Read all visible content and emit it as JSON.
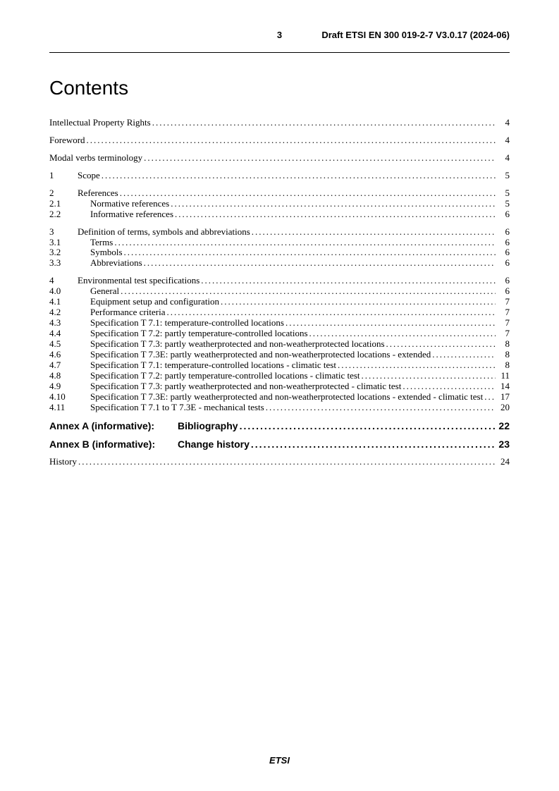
{
  "header": {
    "page_number": "3",
    "doc_id": "Draft ETSI EN 300 019-2-7 V3.0.17 (2024-06)"
  },
  "title": "Contents",
  "front_matter": [
    {
      "text": "Intellectual Property Rights",
      "page": "4"
    },
    {
      "text": "Foreword",
      "page": "4"
    },
    {
      "text": "Modal verbs terminology",
      "page": "4"
    }
  ],
  "sections": [
    {
      "num": "1",
      "text": "Scope",
      "page": "5",
      "subs": []
    },
    {
      "num": "2",
      "text": "References",
      "page": "5",
      "subs": [
        {
          "num": "2.1",
          "text": "Normative references",
          "page": "5"
        },
        {
          "num": "2.2",
          "text": "Informative references",
          "page": "6"
        }
      ]
    },
    {
      "num": "3",
      "text": "Definition of terms, symbols and abbreviations",
      "page": "6",
      "subs": [
        {
          "num": "3.1",
          "text": "Terms",
          "page": "6"
        },
        {
          "num": "3.2",
          "text": "Symbols",
          "page": "6"
        },
        {
          "num": "3.3",
          "text": "Abbreviations",
          "page": "6"
        }
      ]
    },
    {
      "num": "4",
      "text": "Environmental test specifications",
      "page": "6",
      "subs": [
        {
          "num": "4.0",
          "text": "General",
          "page": "6"
        },
        {
          "num": "4.1",
          "text": "Equipment setup and configuration",
          "page": "7"
        },
        {
          "num": "4.2",
          "text": "Performance criteria",
          "page": "7"
        },
        {
          "num": "4.3",
          "text": "Specification T 7.1: temperature-controlled locations",
          "page": "7"
        },
        {
          "num": "4.4",
          "text": "Specification T 7.2: partly temperature-controlled locations",
          "page": "7"
        },
        {
          "num": "4.5",
          "text": "Specification T 7.3: partly weatherprotected and non-weatherprotected locations",
          "page": "8"
        },
        {
          "num": "4.6",
          "text": "Specification T 7.3E: partly weatherprotected and non-weatherprotected locations - extended",
          "page": "8"
        },
        {
          "num": "4.7",
          "text": "Specification T 7.1: temperature-controlled locations - climatic test",
          "page": "8"
        },
        {
          "num": "4.8",
          "text": "Specification T 7.2: partly temperature-controlled locations - climatic test",
          "page": "11"
        },
        {
          "num": "4.9",
          "text": "Specification T 7.3: partly weatherprotected and non-weatherprotected - climatic test",
          "page": "14"
        },
        {
          "num": "4.10",
          "text": "Specification T 7.3E: partly weatherprotected and non-weatherprotected locations - extended - climatic test",
          "page": "17"
        },
        {
          "num": "4.11",
          "text": "Specification T 7.1 to T 7.3E - mechanical tests",
          "page": "20"
        }
      ]
    }
  ],
  "annexes": [
    {
      "label": "Annex A (informative):",
      "title": "Bibliography",
      "page": "22"
    },
    {
      "label": "Annex B (informative):",
      "title": "Change history",
      "page": "23"
    }
  ],
  "back_matter": [
    {
      "text": "History",
      "page": "24"
    }
  ],
  "footer": "ETSI"
}
